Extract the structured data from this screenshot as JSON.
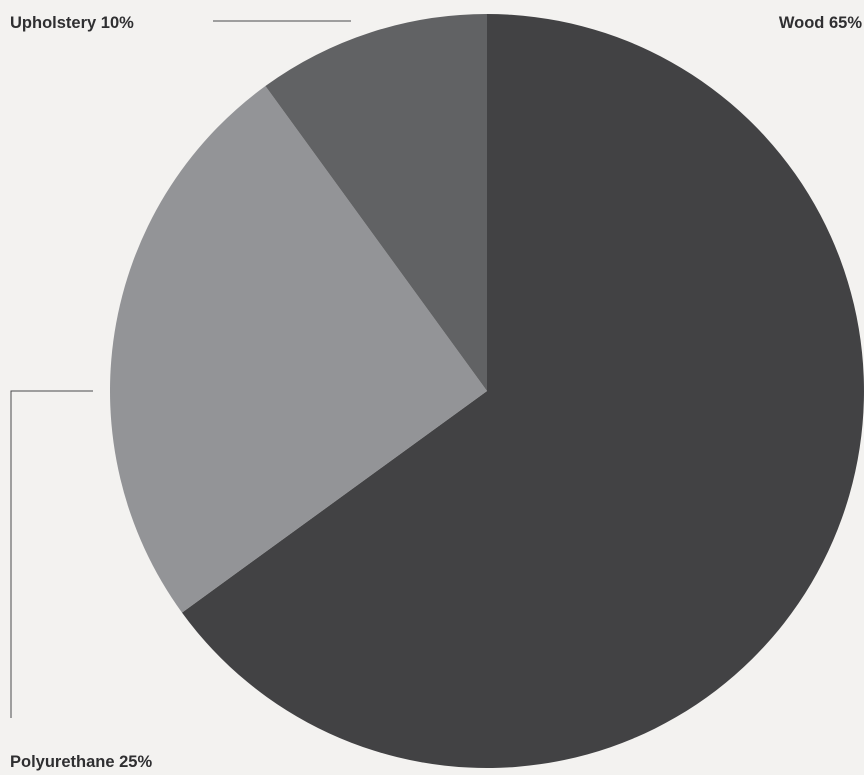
{
  "chart_data": {
    "type": "pie",
    "title": "",
    "start_angle_deg": 0,
    "direction": "clockwise",
    "slices": [
      {
        "label": "Wood",
        "value": 65,
        "value_label": "65%",
        "color": "#424244"
      },
      {
        "label": "Polyurethane",
        "value": 25,
        "value_label": "25%",
        "color": "#939497"
      },
      {
        "label": "Upholstery",
        "value": 10,
        "value_label": "10%",
        "color": "#616264"
      }
    ]
  }
}
